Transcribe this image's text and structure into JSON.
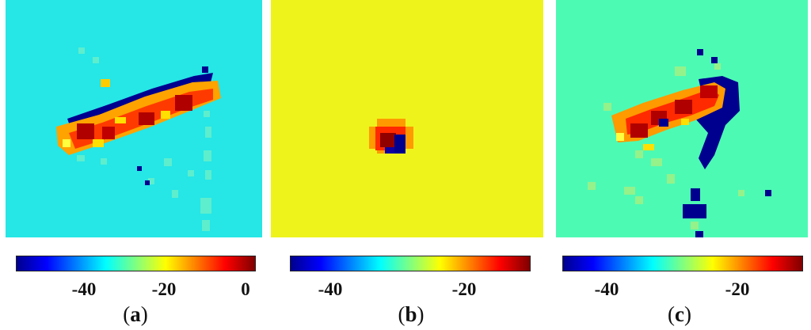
{
  "panels": [
    {
      "id": "a",
      "caption": {
        "open": "(",
        "letter": "a",
        "close": ")"
      },
      "background": "#26e6e6",
      "colorbar": {
        "min": -55,
        "max": 0,
        "ticks": [
          "-40",
          "-20",
          "0"
        ],
        "tick_values": [
          -40,
          -20,
          0
        ]
      }
    },
    {
      "id": "b",
      "caption": {
        "open": "(",
        "letter": "b",
        "close": ")"
      },
      "background": "#eef31c",
      "colorbar": {
        "min": -50,
        "max": -13,
        "ticks": [
          "-40",
          "-20"
        ],
        "tick_values": [
          -40,
          -20
        ]
      }
    },
    {
      "id": "c",
      "caption": {
        "open": "(",
        "letter": "c",
        "close": ")"
      },
      "background": "#4dfab4",
      "colorbar": {
        "min": -50,
        "max": -12,
        "ticks": [
          "-40",
          "-20"
        ],
        "tick_values": [
          -40,
          -20
        ]
      }
    }
  ],
  "colormap": [
    "#00008f",
    "#0000ff",
    "#0080ff",
    "#00ffff",
    "#80ff80",
    "#ffff00",
    "#ff8000",
    "#ff0000",
    "#800000"
  ]
}
